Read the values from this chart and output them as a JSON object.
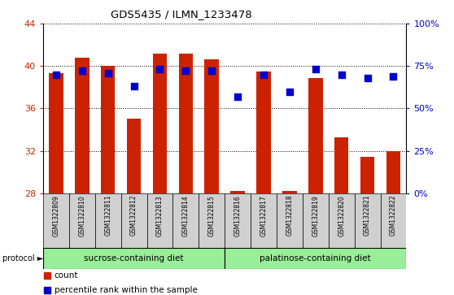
{
  "title": "GDS5435 / ILMN_1233478",
  "samples": [
    "GSM1322809",
    "GSM1322810",
    "GSM1322811",
    "GSM1322812",
    "GSM1322813",
    "GSM1322814",
    "GSM1322815",
    "GSM1322816",
    "GSM1322817",
    "GSM1322818",
    "GSM1322819",
    "GSM1322820",
    "GSM1322821",
    "GSM1322822"
  ],
  "bar_values": [
    39.3,
    40.8,
    40.0,
    35.0,
    41.2,
    41.2,
    40.6,
    28.2,
    39.5,
    28.2,
    38.9,
    33.3,
    31.4,
    32.0
  ],
  "percentile_values": [
    70,
    72,
    71,
    63,
    73,
    72,
    72,
    57,
    70,
    60,
    73,
    70,
    68,
    69
  ],
  "ymin": 28,
  "ymax": 44,
  "yticks_left": [
    28,
    32,
    36,
    40,
    44
  ],
  "yticks_right": [
    0,
    25,
    50,
    75,
    100
  ],
  "bar_color": "#cc2200",
  "dot_color": "#0000cc",
  "bar_width": 0.55,
  "group1_label": "sucrose-containing diet",
  "group2_label": "palatinose-containing diet",
  "group1_count": 7,
  "group_color": "#99ee99",
  "protocol_label": "protocol",
  "legend_count_label": "count",
  "legend_pct_label": "percentile rank within the sample",
  "tick_label_color_left": "#cc2200",
  "tick_label_color_right": "#0000cc",
  "dot_size": 30,
  "gray_color": "#d0d0d0"
}
